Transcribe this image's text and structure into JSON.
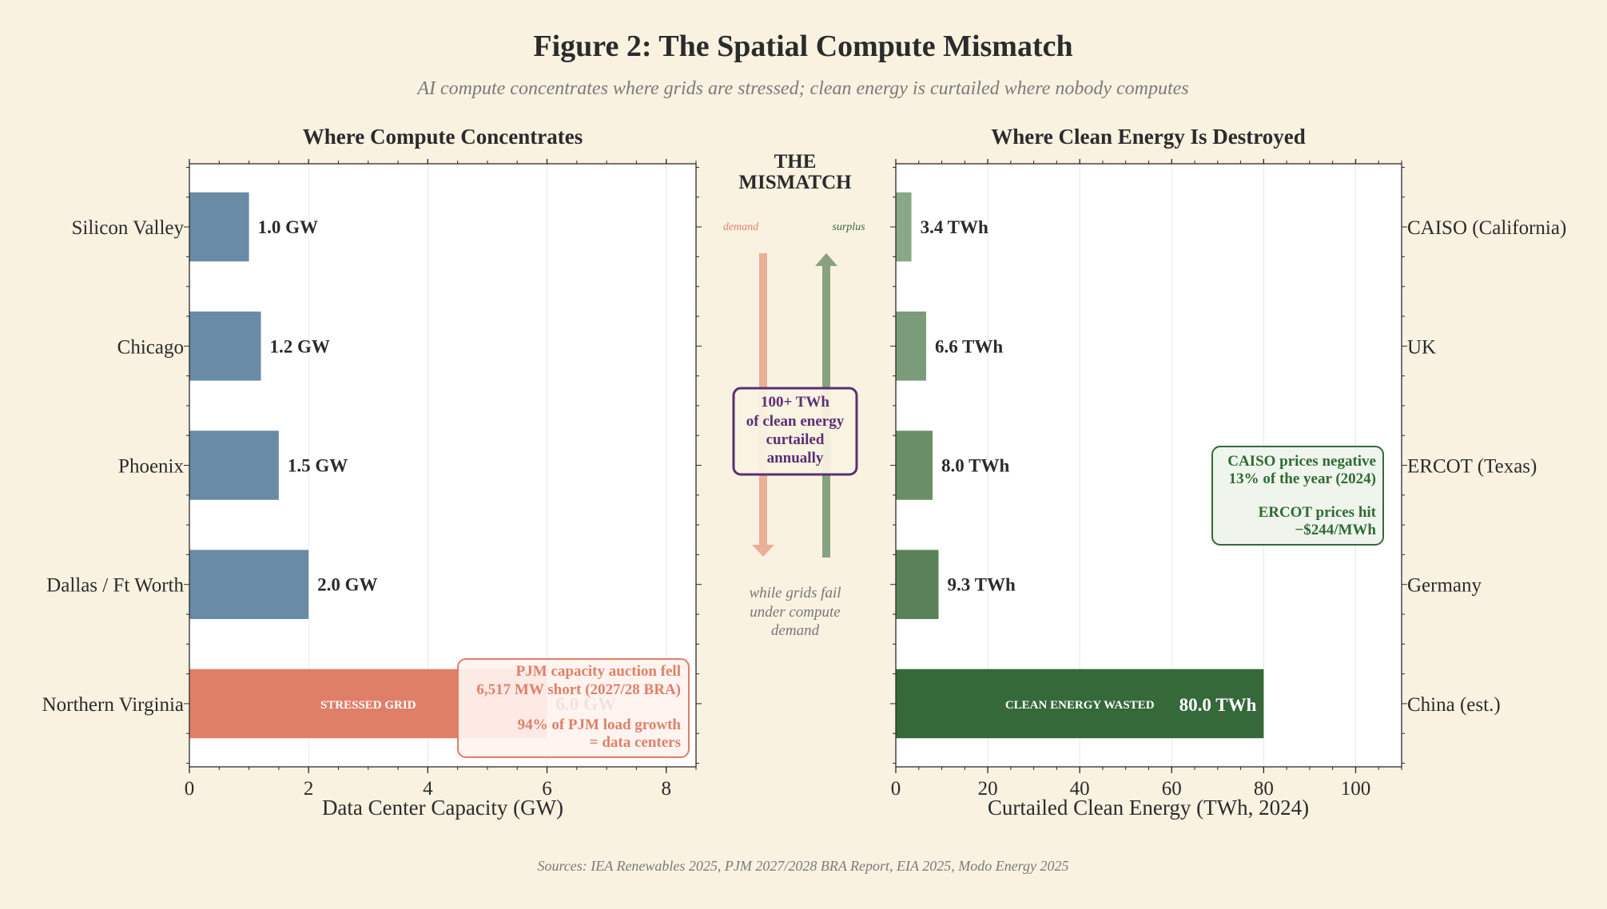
{
  "title": "Figure 2: The Spatial Compute Mismatch",
  "subtitle": "AI compute concentrates where grids are stressed; clean energy is curtailed where nobody computes",
  "source": "Sources: IEA Renewables 2025, PJM 2027/2028 BRA Report, EIA 2025, Modo Energy 2025",
  "colors": {
    "background": "#f9f2e1",
    "compute_bar": "#6a8ba5",
    "stressed_bar": "#e07f68",
    "wasted_bar": "#35693a",
    "purple": "#5b2f74"
  },
  "chart_data": [
    {
      "type": "bar",
      "orientation": "horizontal",
      "title": "Where Compute Concentrates",
      "xlabel": "Data Center Capacity (GW)",
      "categories": [
        "Silicon Valley",
        "Chicago",
        "Phoenix",
        "Dallas / Ft Worth",
        "Northern Virginia"
      ],
      "values": [
        1.0,
        1.2,
        1.5,
        2.0,
        6.0
      ],
      "value_labels": [
        "1.0 GW",
        "1.2 GW",
        "1.5 GW",
        "2.0 GW",
        "6.0 GW"
      ],
      "bar_colors": [
        "#6a8ba5",
        "#6a8ba5",
        "#6a8ba5",
        "#6a8ba5",
        "#e07f68"
      ],
      "xlim": [
        0,
        8.5
      ],
      "xticks": [
        0,
        2,
        4,
        6,
        8
      ],
      "grid": true,
      "bar_inner_label": "STRESSED GRID",
      "annotation": [
        "PJM capacity auction fell",
        "6,517 MW short (2027/28 BRA)",
        "",
        "94% of PJM load growth",
        "= data centers"
      ]
    },
    {
      "type": "bar",
      "orientation": "horizontal",
      "title": "Where Clean Energy Is Destroyed",
      "xlabel": "Curtailed Clean Energy (TWh, 2024)",
      "categories": [
        "CAISO (California)",
        "UK",
        "ERCOT (Texas)",
        "Germany",
        "China (est.)"
      ],
      "values": [
        3.4,
        6.6,
        8.0,
        9.3,
        80.0
      ],
      "value_labels": [
        "3.4 TWh",
        "6.6 TWh",
        "8.0 TWh",
        "9.3 TWh",
        "80.0 TWh"
      ],
      "bar_colors": [
        "#8aa888",
        "#7a9c7a",
        "#6a8f68",
        "#5a8259",
        "#35693a"
      ],
      "xlim": [
        0,
        110
      ],
      "xticks": [
        0,
        20,
        40,
        60,
        80,
        100
      ],
      "grid": true,
      "bar_inner_label": "CLEAN ENERGY WASTED",
      "annotation": [
        "CAISO prices negative",
        "13% of the year (2024)",
        "",
        "ERCOT prices hit",
        "−$244/MWh"
      ]
    }
  ],
  "middle": {
    "heading": [
      "THE",
      "MISMATCH"
    ],
    "demand_label": "demand",
    "surplus_label": "surplus",
    "box_lines": [
      "100+ TWh",
      "of clean energy",
      "curtailed",
      "annually"
    ],
    "footer_lines": [
      "while grids fail",
      "under compute",
      "demand"
    ]
  }
}
